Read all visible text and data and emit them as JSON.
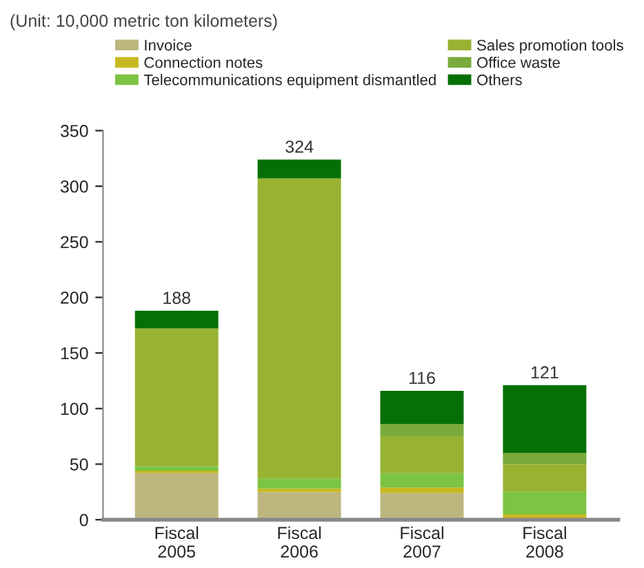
{
  "chart_data": {
    "type": "bar",
    "stacked": true,
    "annotations": [
      "(Unit: 10,000 metric ton kilometers)"
    ],
    "categories": [
      "Fiscal\n2005",
      "Fiscal\n2006",
      "Fiscal\n2007",
      "Fiscal\n2008"
    ],
    "series": [
      {
        "name": "Invoice",
        "color": "#bdb67f",
        "values": [
          42,
          25,
          24,
          null
        ]
      },
      {
        "name": "Connection notes",
        "color": "#c8b820",
        "values": [
          2,
          3,
          5,
          5
        ]
      },
      {
        "name": "Telecommunications equipment dismantled",
        "color": "#7cc444",
        "values": [
          4,
          9,
          13,
          20
        ]
      },
      {
        "name": "Sales promotion tools",
        "color": "#98b232",
        "values": [
          124,
          270,
          33,
          25
        ]
      },
      {
        "name": "Office waste",
        "color": "#7aaa3c",
        "values": [
          0,
          0,
          11,
          10
        ]
      },
      {
        "name": "Others",
        "color": "#067006",
        "values": [
          16,
          17,
          30,
          61
        ]
      }
    ],
    "totals": [
      "188",
      "324",
      "116",
      "121"
    ],
    "ylim": [
      0,
      350
    ],
    "yticks": [
      0,
      50,
      100,
      150,
      200,
      250,
      300,
      350
    ],
    "legend": "top right"
  }
}
